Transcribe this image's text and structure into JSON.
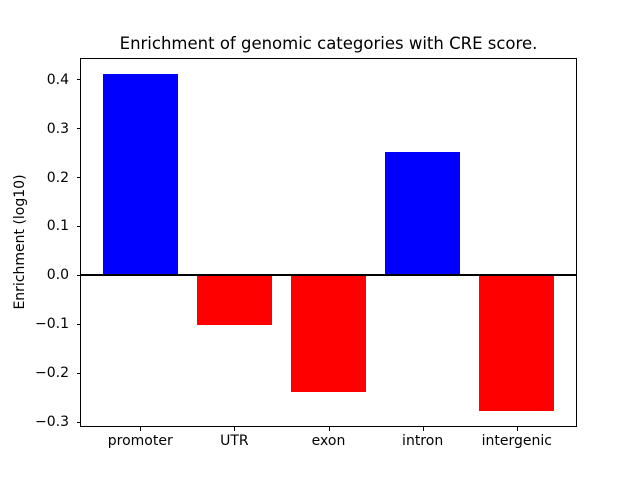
{
  "figure": {
    "background": "#ffffff",
    "axes_color": "#000000"
  },
  "chart_data": {
    "type": "bar",
    "title": "Enrichment of genomic categories with CRE score.",
    "xlabel": "",
    "ylabel": "Enrichment (log10)",
    "categories": [
      "promoter",
      "UTR",
      "exon",
      "intron",
      "intergenic"
    ],
    "values": [
      0.412,
      -0.101,
      -0.239,
      0.252,
      -0.276
    ],
    "bar_colors": [
      "#0000ff",
      "#ff0000",
      "#ff0000",
      "#0000ff",
      "#ff0000"
    ],
    "positive_color": "#0000ff",
    "negative_color": "#ff0000",
    "baseline": 0,
    "baseline_color": "#000000",
    "yticks": [
      -0.3,
      -0.2,
      -0.1,
      0.0,
      0.1,
      0.2,
      0.3,
      0.4
    ],
    "ytick_labels": [
      "−0.3",
      "−0.2",
      "−0.1",
      "0.0",
      "0.1",
      "0.2",
      "0.3",
      "0.4"
    ],
    "ylim": [
      -0.31,
      0.445
    ],
    "xlim": [
      -0.64,
      4.64
    ],
    "bar_width_fraction": 0.8,
    "grid": false,
    "legend": null
  }
}
